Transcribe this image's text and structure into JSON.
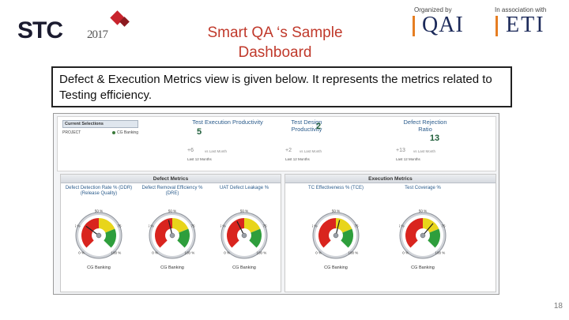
{
  "header": {
    "logo_text": "STC",
    "logo_year": "2017",
    "title": "Smart QA ‘s Sample Dashboard",
    "organized_by": "Organized by",
    "org_name": "QAI",
    "association": "In association with",
    "assoc_name": "ETI"
  },
  "description": "Defect & Execution Metrics view is  given below. It  represents the metrics related to Testing efficiency.",
  "dashboard": {
    "selector": {
      "title": "Current Selections",
      "field": "PROJECT",
      "value": "CG Banking"
    },
    "kpis": [
      {
        "title": "Test Execution Productivity",
        "value": "5",
        "delta": "+6",
        "delta_label": "vs Last Month",
        "period": "Last 12 Months"
      },
      {
        "title": "Test Design Productivity",
        "value": "2",
        "delta": "+2",
        "delta_label": "vs Last Month",
        "period": "Last 12 Months"
      },
      {
        "title": "Defect Rejection Ratio",
        "value": "13",
        "delta": "+13",
        "delta_label": "vs Last Month",
        "period": "Last 12 Months"
      }
    ],
    "defect_panel": {
      "title": "Defect Metrics",
      "gauges": [
        {
          "title": "Defect Detection Rate % (DDR) (Release Quality)",
          "label": "CG Banking",
          "ticks": [
            "0 %",
            "25 %",
            "50 %",
            "75 %",
            "100 %"
          ],
          "value": 0.3
        },
        {
          "title": "Defect Removal Efficiency % (DRE)",
          "label": "CG Banking",
          "ticks": [
            "0 %",
            "25 %",
            "50 %",
            "75 %",
            "100 %"
          ],
          "value": 0.45
        },
        {
          "title": "UAT Defect Leakage %",
          "label": "CG Banking",
          "ticks": [
            "0 %",
            "25 %",
            "50 %",
            "75 %",
            "100 %"
          ],
          "value": 0.4
        }
      ]
    },
    "execution_panel": {
      "title": "Execution Metrics",
      "gauges": [
        {
          "title": "TC Effectiveness % (TCE)",
          "label": "CG Banking",
          "ticks": [
            "0 %",
            "25 %",
            "50 %",
            "75 %",
            "100 %"
          ],
          "value": 0.55
        },
        {
          "title": "Test Coverage %",
          "label": "CG Banking",
          "ticks": [
            "0 %",
            "25 %",
            "50 %",
            "75 %",
            "100 %"
          ],
          "value": 0.65
        }
      ]
    },
    "colors": {
      "red": "#d9241e",
      "yellow": "#e8d51a",
      "green": "#2e9e3c"
    }
  },
  "slide_number": "18"
}
